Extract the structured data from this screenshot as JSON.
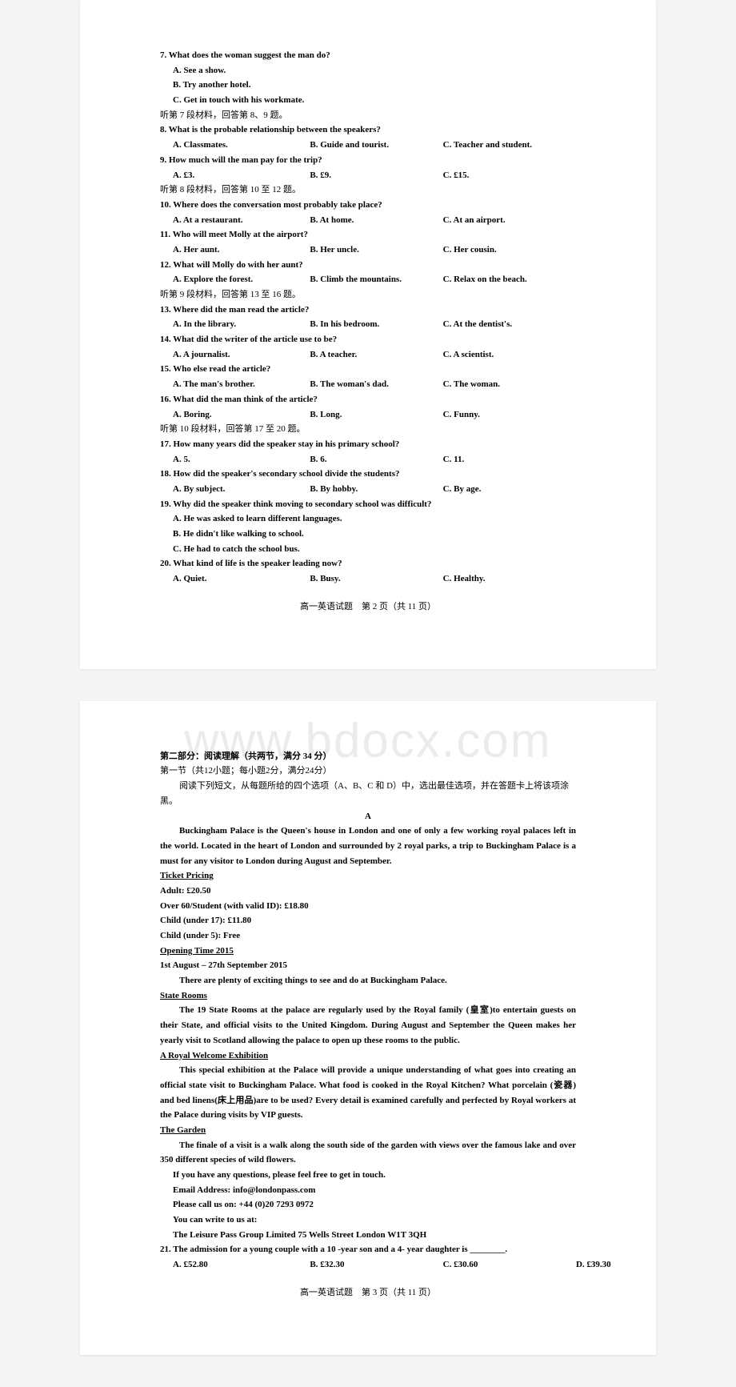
{
  "watermark": "www.bdocx.com",
  "page2": {
    "q7": {
      "stem": "7. What does the woman suggest the man do?",
      "a": "A. See a show.",
      "b": "B. Try another hotel.",
      "c": "C. Get in touch with his workmate."
    },
    "inst7": "听第 7 段材料，回答第 8、9 题。",
    "q8": {
      "stem": "8. What is the probable relationship between the speakers?",
      "a": "A. Classmates.",
      "b": "B. Guide and tourist.",
      "c": "C. Teacher and student."
    },
    "q9": {
      "stem": "9. How much will the man pay for the trip?",
      "a": "A. £3.",
      "b": "B. £9.",
      "c": "C. £15."
    },
    "inst8": "听第 8 段材料，回答第 10 至 12 题。",
    "q10": {
      "stem": "10. Where does the conversation most probably take place?",
      "a": "A. At a restaurant.",
      "b": "B. At home.",
      "c": "C. At an airport."
    },
    "q11": {
      "stem": "11. Who will meet Molly at the airport?",
      "a": "A. Her aunt.",
      "b": "B. Her uncle.",
      "c": "C. Her cousin."
    },
    "q12": {
      "stem": "12. What will Molly do with her aunt?",
      "a": "A. Explore the forest.",
      "b": "B. Climb the mountains.",
      "c": "C. Relax on the beach."
    },
    "inst9": "听第 9 段材料，回答第 13 至 16 题。",
    "q13": {
      "stem": "13. Where did the man read the article?",
      "a": "A. In the library.",
      "b": "B. In his bedroom.",
      "c": "C. At the dentist's."
    },
    "q14": {
      "stem": "14. What did the writer of the article use to be?",
      "a": "A. A journalist.",
      "b": "B. A teacher.",
      "c": "C. A scientist."
    },
    "q15": {
      "stem": "15. Who else read the article?",
      "a": "A. The man's brother.",
      "b": "B. The woman's dad.",
      "c": "C. The woman."
    },
    "q16": {
      "stem": "16. What did the man think of the article?",
      "a": "A. Boring.",
      "b": "B. Long.",
      "c": "C. Funny."
    },
    "inst10": "听第 10 段材料，回答第 17 至 20 题。",
    "q17": {
      "stem": "17. How many years did the speaker stay in his primary school?",
      "a": "A. 5.",
      "b": "B. 6.",
      "c": "C. 11."
    },
    "q18": {
      "stem": "18. How did the speaker's secondary school divide the students?",
      "a": "A. By subject.",
      "b": "B. By hobby.",
      "c": "C. By age."
    },
    "q19": {
      "stem": "19. Why did the speaker think moving to secondary school was difficult?",
      "a": "A. He was asked to learn different languages.",
      "b": "B. He didn't like walking to school.",
      "c": "C. He had to catch the school bus."
    },
    "q20": {
      "stem": "20. What kind of life is the speaker leading now?",
      "a": "A. Quiet.",
      "b": "B. Busy.",
      "c": "C. Healthy."
    },
    "footer": "高一英语试题　第 2 页（共 11 页）"
  },
  "page3": {
    "part2_title": "第二部分：阅读理解（共两节，满分 34 分）",
    "sec1_title": "第一节（共12小题；每小题2分，满分24分）",
    "sec1_inst": "阅读下列短文，从每题所给的四个选项（A、B、C 和 D）中，选出最佳选项，并在答题卡上将该项涂黑。",
    "passage_label": "A",
    "p1": "Buckingham Palace is the Queen's house in London and one of only a few working royal palaces left in the world. Located in the heart of London and surrounded by 2 royal parks, a trip to Buckingham Palace is a must for any visitor to London during August and September.",
    "pricing_head": "Ticket Pricing",
    "pricing": {
      "adult": "Adult: £20.50",
      "over60": "Over 60/Student (with valid ID): £18.80",
      "child17": "Child (under 17): £11.80",
      "child5": "Child (under 5): Free"
    },
    "open_head": "Opening Time 2015",
    "open_date": "1st August – 27th September 2015",
    "open_line": "There are plenty of exciting things to see and do at Buckingham Palace.",
    "state_head": "State Rooms",
    "state_body": "The 19 State Rooms at the palace are regularly used by the Royal family (皇室)to entertain guests on their State, and official visits to the United Kingdom. During August and September the Queen makes her yearly visit to Scotland allowing the palace to open up these rooms to the public.",
    "welcome_head": "A Royal Welcome Exhibition",
    "welcome_body": "This special exhibition at the Palace will provide a unique understanding of what goes into creating an official state visit to Buckingham Palace. What food is cooked in the Royal Kitchen? What porcelain (瓷器) and bed linens(床上用品)are to be used? Every detail is examined carefully and perfected by Royal workers at the Palace during visits by VIP guests.",
    "garden_head": "The Garden",
    "garden_body": "The finale of a visit is a walk along the south side of the garden with views over the famous lake and over 350 different species of wild flowers.",
    "contact1": "If you have any questions, please feel free to get in touch.",
    "contact2": "Email Address: info@londonpass.com",
    "contact3": "Please call us on: +44 (0)20 7293 0972",
    "contact4": "You can write to us at:",
    "contact5": "The Leisure Pass Group Limited 75 Wells Street London W1T 3QH",
    "q21": {
      "stem": "21. The admission for a young couple with a 10 -year son and a 4- year daughter is ________.",
      "a": "A. £52.80",
      "b": "B. £32.30",
      "c": "C. £30.60",
      "d": "D. £39.30"
    },
    "footer": "高一英语试题　第 3 页（共 11 页）"
  }
}
